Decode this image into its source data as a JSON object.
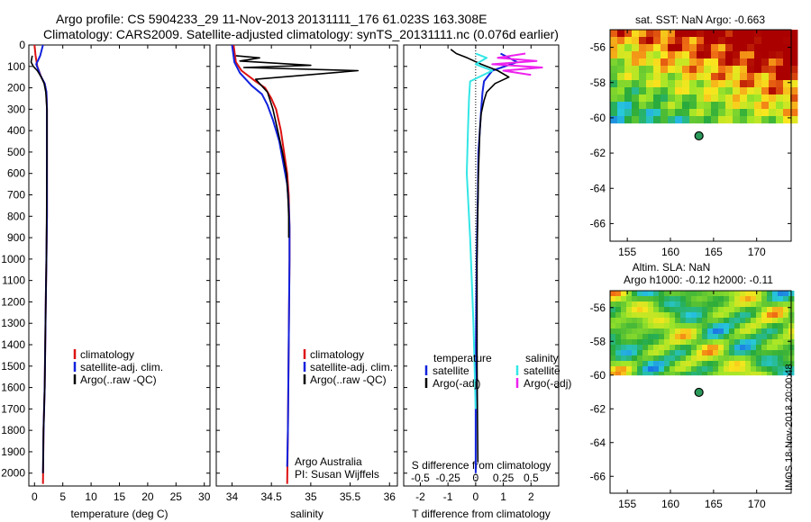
{
  "header": {
    "title_line1": "Argo profile: CS 5904233_29 11-Nov-2013 20131111_176 61.023S 163.308E",
    "title_line2": "Climatology: CARS2009. Satellite-adjusted climatology: synTS_20131111.nc (0.076d earlier)"
  },
  "sidebar_label": "IMOS 18-Nov-2013 20:00:48",
  "colors": {
    "climatology": "#dd1111",
    "satellite": "#1122dd",
    "argo": "#000000",
    "salinity_sat": "#33e6e6",
    "salinity_argo": "#ee22ee"
  },
  "chart_data": [
    {
      "id": "temperature",
      "type": "line",
      "xlabel": "temperature (deg C)",
      "ylabel": "",
      "xlim": [
        -1,
        31
      ],
      "ylim": [
        2060,
        0
      ],
      "xticks": [
        0,
        5,
        10,
        15,
        20,
        25,
        30
      ],
      "yticks": [
        0,
        100,
        200,
        300,
        400,
        500,
        600,
        700,
        800,
        900,
        1000,
        1100,
        1200,
        1300,
        1400,
        1500,
        1600,
        1700,
        1800,
        1900,
        2000
      ],
      "legend": [
        "climatology",
        "satellite-adj. clim.",
        "Argo(..raw -QC)"
      ],
      "series": [
        {
          "name": "climatology",
          "color": "climatology",
          "x": [
            0.0,
            0.2,
            0.5,
            1.2,
            1.8,
            2.1,
            2.2,
            2.2,
            2.2,
            2.1,
            2.0,
            1.9,
            1.8,
            1.6,
            1.5
          ],
          "y": [
            0,
            50,
            100,
            150,
            180,
            220,
            300,
            500,
            800,
            1000,
            1200,
            1400,
            1600,
            1800,
            2050
          ]
        },
        {
          "name": "satellite-adj. clim.",
          "color": "satellite",
          "x": [
            1.5,
            1.0,
            0.3,
            1.0,
            1.8,
            2.1,
            2.2,
            2.2,
            2.2,
            2.1,
            2.0,
            1.9,
            1.8,
            1.6,
            1.5
          ],
          "y": [
            0,
            50,
            90,
            140,
            180,
            220,
            300,
            500,
            800,
            1000,
            1200,
            1400,
            1600,
            1800,
            2000
          ]
        },
        {
          "name": "Argo(..raw -QC)",
          "color": "argo",
          "x": [
            -0.4,
            -0.6,
            -0.2,
            0.5,
            1.2,
            1.7,
            2.0,
            2.2,
            2.2,
            2.1,
            2.0,
            1.9,
            1.8,
            1.6,
            1.5
          ],
          "y": [
            50,
            80,
            100,
            120,
            150,
            180,
            220,
            300,
            500,
            1000,
            1200,
            1400,
            1600,
            1800,
            2000
          ]
        }
      ]
    },
    {
      "id": "salinity",
      "type": "line",
      "xlabel": "salinity",
      "ylabel": "",
      "xlim": [
        33.8,
        36.1
      ],
      "ylim": [
        2060,
        0
      ],
      "xticks": [
        34,
        34.5,
        35,
        35.5,
        36
      ],
      "yticks": [
        0,
        100,
        200,
        300,
        400,
        500,
        600,
        700,
        800,
        900,
        1000,
        1100,
        1200,
        1300,
        1400,
        1500,
        1600,
        1700,
        1800,
        1900,
        2000
      ],
      "legend": [
        "climatology",
        "satellite-adj. clim.",
        "Argo(..raw -QC)"
      ],
      "annotations": [
        "Argo Australia",
        "PI: Susan Wijffels"
      ],
      "series": [
        {
          "name": "climatology",
          "color": "climatology",
          "x": [
            34.02,
            34.05,
            34.12,
            34.3,
            34.42,
            34.5,
            34.56,
            34.62,
            34.66,
            34.7,
            34.72,
            34.73,
            34.73,
            34.72,
            34.71,
            34.7
          ],
          "y": [
            0,
            80,
            120,
            170,
            200,
            250,
            300,
            400,
            500,
            600,
            700,
            850,
            1000,
            1400,
            1800,
            2050
          ]
        },
        {
          "name": "satellite-adj. clim.",
          "color": "satellite",
          "x": [
            34.0,
            34.03,
            34.1,
            34.25,
            34.38,
            34.45,
            34.52,
            34.6,
            34.65,
            34.7,
            34.72,
            34.73,
            34.73,
            34.72,
            34.71,
            34.7
          ],
          "y": [
            0,
            80,
            130,
            190,
            230,
            280,
            350,
            450,
            550,
            650,
            750,
            850,
            1000,
            1400,
            1800,
            1970
          ]
        },
        {
          "name": "Argo(..raw -QC)",
          "color": "argo",
          "x": [
            34.05,
            34.35,
            34.1,
            35.0,
            34.15,
            35.6,
            34.3,
            34.45,
            34.52,
            34.58,
            34.64,
            34.69,
            34.71,
            34.72,
            34.72
          ],
          "y": [
            50,
            60,
            75,
            95,
            105,
            120,
            160,
            220,
            300,
            400,
            500,
            600,
            700,
            800,
            900
          ]
        }
      ]
    },
    {
      "id": "difference",
      "type": "line",
      "xlabel": "T difference from climatology",
      "xlabel2": "S difference from climatology",
      "ylabel": "",
      "xlim": [
        -2.6,
        3.0
      ],
      "ylim": [
        2060,
        0
      ],
      "xticks": [
        -2,
        -1,
        0,
        1,
        2
      ],
      "xticks_top": [
        -0.5,
        -0.25,
        0,
        0.25,
        0.5
      ],
      "xticks_top_labels": [
        "-0.5",
        "-0.25",
        "0",
        "0.25",
        "0.5"
      ],
      "yticks": [
        0,
        100,
        200,
        300,
        400,
        500,
        600,
        700,
        800,
        900,
        1000,
        1100,
        1200,
        1300,
        1400,
        1500,
        1600,
        1700,
        1800,
        1900,
        2000
      ],
      "legend_titles": [
        "temperature",
        "salinity"
      ],
      "legend": [
        "satellite",
        "Argo(-adj)",
        "satellite",
        "Argo(-adj)"
      ],
      "series": [
        {
          "name": "satellite",
          "group": "temperature",
          "color": "satellite",
          "x": [
            0.9,
            1.5,
            0.6,
            0.3,
            0.25,
            0.2,
            0.15,
            0.1,
            0.08,
            0.05,
            0.02,
            0.0,
            0.0
          ],
          "y": [
            40,
            80,
            120,
            170,
            220,
            300,
            400,
            500,
            700,
            900,
            1200,
            1600,
            2000
          ]
        },
        {
          "name": "Argo(-adj)",
          "group": "temperature",
          "color": "argo",
          "x": [
            -0.9,
            -0.7,
            -0.3,
            0.2,
            0.8,
            1.2,
            0.7,
            0.4,
            0.3,
            0.2,
            0.15,
            0.1,
            0.05,
            0.05,
            0.08
          ],
          "y": [
            20,
            40,
            60,
            90,
            120,
            150,
            180,
            220,
            260,
            320,
            400,
            600,
            1000,
            1500,
            1950
          ]
        },
        {
          "name": "satellite",
          "group": "salinity",
          "color": "salinity_sat",
          "x": [
            0.0,
            0.1,
            0.0,
            0.15,
            -0.05,
            -0.06,
            -0.07,
            -0.08,
            -0.05,
            -0.02,
            0.0
          ],
          "y": [
            40,
            60,
            90,
            120,
            170,
            250,
            400,
            600,
            900,
            1300,
            1700
          ]
        },
        {
          "name": "Argo(-adj)",
          "group": "salinity",
          "color": "salinity_argo",
          "x": [
            0.45,
            0.2,
            0.55,
            0.15,
            0.6,
            0.25,
            0.5
          ],
          "y": [
            40,
            60,
            75,
            90,
            105,
            120,
            140
          ]
        }
      ]
    },
    {
      "id": "sst-map",
      "type": "heatmap",
      "title": "sat. SST: NaN Argo: -0.663",
      "xlim": [
        153,
        174
      ],
      "ylim": [
        -67,
        -55
      ],
      "xticks": [
        155,
        160,
        165,
        170
      ],
      "yticks": [
        -56,
        -58,
        -60,
        -62,
        -64,
        -66
      ],
      "marker": {
        "lon": 163.308,
        "lat": -61.023
      }
    },
    {
      "id": "sla-map",
      "type": "heatmap",
      "title": "Altim. SLA: NaN",
      "subtitle": "Argo h1000: -0.12 h2000: -0.11",
      "xlim": [
        153,
        174
      ],
      "ylim": [
        -67,
        -55
      ],
      "xticks": [
        155,
        160,
        165,
        170
      ],
      "yticks": [
        -56,
        -58,
        -60,
        -62,
        -64,
        -66
      ],
      "marker": {
        "lon": 163.308,
        "lat": -61.023
      }
    }
  ]
}
